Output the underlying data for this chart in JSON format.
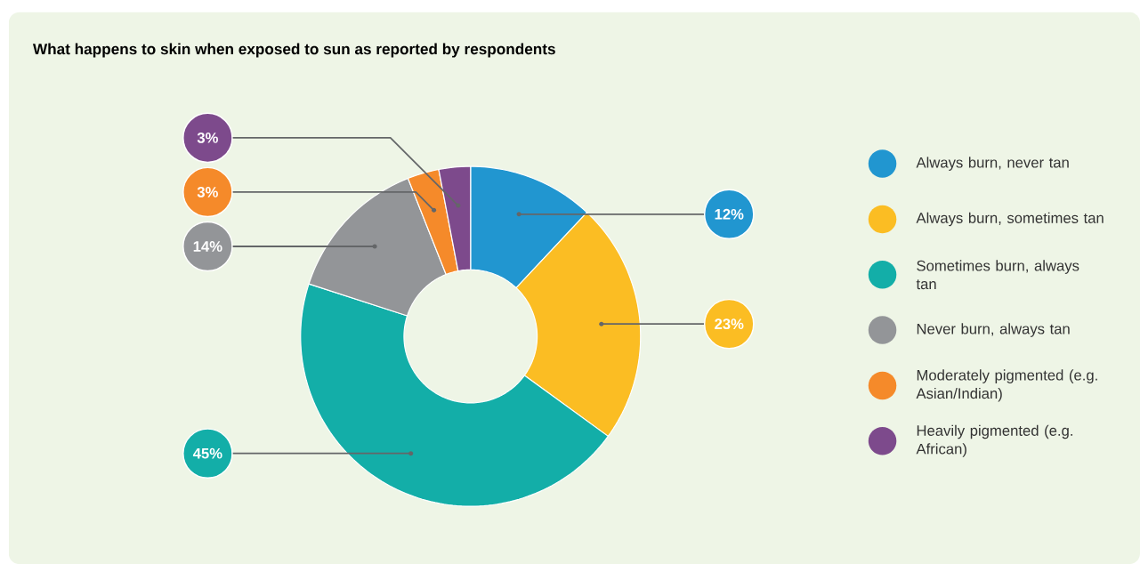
{
  "chart_data": {
    "type": "donut",
    "title": "What happens to skin when exposed to sun as reported by respondents",
    "categories": [
      "Always burn, never tan",
      "Always burn, sometimes tan",
      "Sometimes burn, always tan",
      "Never burn, always tan",
      "Moderately pigmented (e.g. Asian/Indian)",
      "Heavily pigmented (e.g. African)"
    ],
    "values": [
      12,
      23,
      45,
      14,
      3,
      3
    ],
    "colors": [
      "#2196d0",
      "#fbbd23",
      "#13aea8",
      "#939598",
      "#f58a2a",
      "#7d4a8c"
    ],
    "value_labels": [
      "12%",
      "23%",
      "45%",
      "14%",
      "3%",
      "3%"
    ],
    "legend": "right"
  }
}
